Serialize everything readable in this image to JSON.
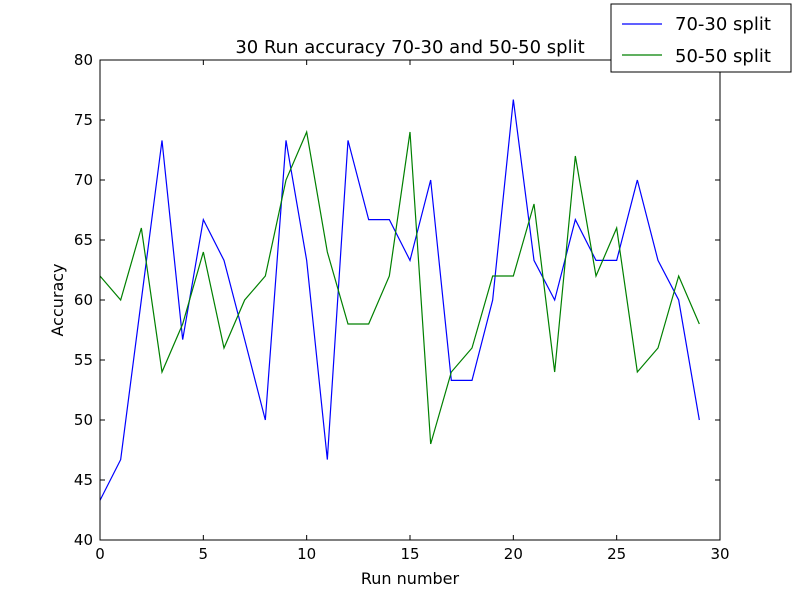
{
  "chart_data": {
    "type": "line",
    "title": "30 Run accuracy 70-30 and 50-50 split",
    "xlabel": "Run number",
    "ylabel": "Accuracy",
    "xlim": [
      0,
      30
    ],
    "ylim": [
      40,
      80
    ],
    "xticks": [
      0,
      5,
      10,
      15,
      20,
      25,
      30
    ],
    "yticks": [
      40,
      45,
      50,
      55,
      60,
      65,
      70,
      75,
      80
    ],
    "grid": false,
    "legend_position": "top-right",
    "x": [
      0,
      1,
      2,
      3,
      4,
      5,
      6,
      7,
      8,
      9,
      10,
      11,
      12,
      13,
      14,
      15,
      16,
      17,
      18,
      19,
      20,
      21,
      22,
      23,
      24,
      25,
      26,
      27,
      28,
      29
    ],
    "series": [
      {
        "name": "70-30 split",
        "color": "#0000ff",
        "values": [
          43.3,
          46.7,
          60.0,
          73.3,
          56.7,
          66.7,
          63.3,
          56.7,
          50.0,
          73.3,
          63.3,
          46.7,
          73.3,
          66.7,
          66.7,
          63.3,
          70.0,
          53.3,
          53.3,
          60.0,
          76.7,
          63.3,
          60.0,
          66.7,
          63.3,
          63.3,
          70.0,
          63.3,
          60.0,
          50.0
        ]
      },
      {
        "name": "50-50 split",
        "color": "#008000",
        "values": [
          62,
          60,
          66,
          54,
          58,
          64,
          56,
          60,
          62,
          70,
          74,
          64,
          58,
          58,
          62,
          74,
          48,
          54,
          56,
          62,
          62,
          68,
          54,
          72,
          62,
          66,
          54,
          56,
          62,
          58
        ]
      }
    ]
  }
}
